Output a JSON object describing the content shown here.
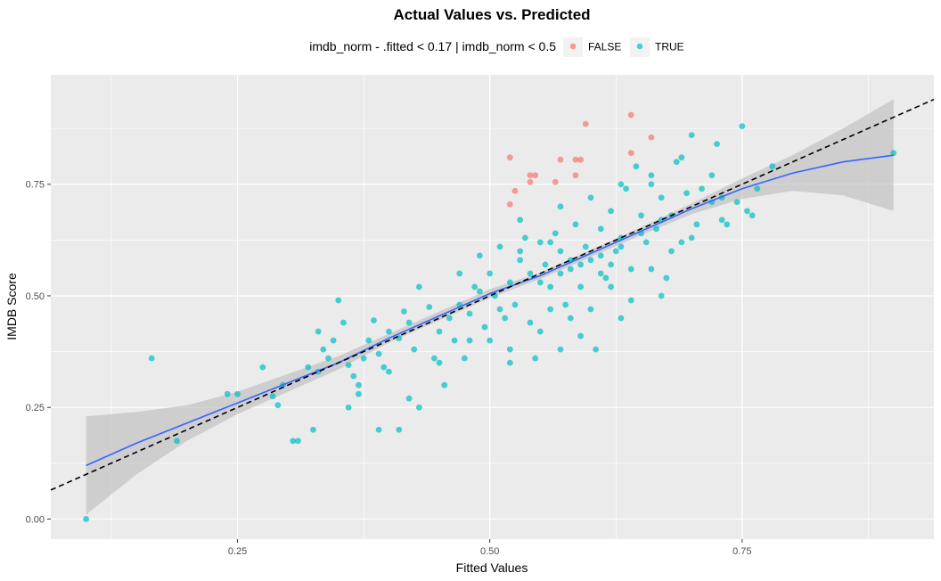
{
  "chart_data": {
    "type": "scatter",
    "title": "Actual Values vs. Predicted",
    "xlabel": "Fitted Values",
    "ylabel": "IMDB Score",
    "xlim": [
      0.065,
      0.94
    ],
    "ylim": [
      -0.045,
      0.995
    ],
    "x_ticks": [
      0.25,
      0.5,
      0.75
    ],
    "x_tick_labels": [
      "0.25",
      "0.50",
      "0.75"
    ],
    "y_ticks": [
      0.0,
      0.25,
      0.5,
      0.75
    ],
    "y_tick_labels": [
      "0.00",
      "0.25",
      "0.50",
      "0.75"
    ],
    "grid": true,
    "legend": {
      "title": "imdb_norm - .fitted < 0.17 | imdb_norm < 0.5",
      "placement": "top",
      "entries": [
        {
          "label": "FALSE",
          "color": "#F8766D"
        },
        {
          "label": "TRUE",
          "color": "#00BFC4"
        }
      ]
    },
    "colors": {
      "panel": "#EBEBEB",
      "grid": "#FFFFFF",
      "smooth_line": "#3366FF",
      "ribbon": "#BEBEBE",
      "reference_line": "#000000"
    },
    "reference_line": {
      "slope": 1,
      "intercept": 0,
      "style": "dashed"
    },
    "smooth": {
      "x": [
        0.1,
        0.15,
        0.2,
        0.25,
        0.3,
        0.35,
        0.4,
        0.45,
        0.5,
        0.55,
        0.6,
        0.65,
        0.7,
        0.75,
        0.8,
        0.85,
        0.9
      ],
      "y": [
        0.12,
        0.17,
        0.215,
        0.26,
        0.305,
        0.35,
        0.405,
        0.455,
        0.505,
        0.545,
        0.595,
        0.645,
        0.695,
        0.74,
        0.775,
        0.8,
        0.815
      ],
      "lower": [
        0.01,
        0.1,
        0.175,
        0.235,
        0.285,
        0.335,
        0.395,
        0.445,
        0.495,
        0.538,
        0.587,
        0.636,
        0.683,
        0.717,
        0.735,
        0.725,
        0.69
      ],
      "upper": [
        0.23,
        0.24,
        0.255,
        0.285,
        0.325,
        0.365,
        0.415,
        0.465,
        0.515,
        0.552,
        0.603,
        0.654,
        0.707,
        0.763,
        0.815,
        0.875,
        0.94
      ]
    },
    "series": [
      {
        "name": "FALSE",
        "points": [
          [
            0.52,
            0.81
          ],
          [
            0.525,
            0.735
          ],
          [
            0.52,
            0.705
          ],
          [
            0.54,
            0.77
          ],
          [
            0.545,
            0.77
          ],
          [
            0.54,
            0.755
          ],
          [
            0.565,
            0.755
          ],
          [
            0.57,
            0.805
          ],
          [
            0.585,
            0.77
          ],
          [
            0.59,
            0.805
          ],
          [
            0.595,
            0.885
          ],
          [
            0.64,
            0.905
          ],
          [
            0.64,
            0.82
          ],
          [
            0.66,
            0.855
          ],
          [
            0.585,
            0.805
          ]
        ]
      },
      {
        "name": "TRUE",
        "points": [
          [
            0.1,
            0.0
          ],
          [
            0.165,
            0.36
          ],
          [
            0.19,
            0.175
          ],
          [
            0.24,
            0.28
          ],
          [
            0.25,
            0.28
          ],
          [
            0.285,
            0.275
          ],
          [
            0.29,
            0.255
          ],
          [
            0.295,
            0.3
          ],
          [
            0.275,
            0.34
          ],
          [
            0.305,
            0.175
          ],
          [
            0.31,
            0.175
          ],
          [
            0.32,
            0.34
          ],
          [
            0.325,
            0.2
          ],
          [
            0.33,
            0.42
          ],
          [
            0.335,
            0.38
          ],
          [
            0.34,
            0.36
          ],
          [
            0.345,
            0.4
          ],
          [
            0.35,
            0.49
          ],
          [
            0.355,
            0.44
          ],
          [
            0.36,
            0.345
          ],
          [
            0.365,
            0.32
          ],
          [
            0.37,
            0.3
          ],
          [
            0.375,
            0.36
          ],
          [
            0.38,
            0.4
          ],
          [
            0.385,
            0.445
          ],
          [
            0.39,
            0.37
          ],
          [
            0.395,
            0.34
          ],
          [
            0.4,
            0.42
          ],
          [
            0.41,
            0.405
          ],
          [
            0.415,
            0.465
          ],
          [
            0.42,
            0.44
          ],
          [
            0.425,
            0.38
          ],
          [
            0.43,
            0.52
          ],
          [
            0.44,
            0.475
          ],
          [
            0.445,
            0.36
          ],
          [
            0.45,
            0.42
          ],
          [
            0.455,
            0.3
          ],
          [
            0.46,
            0.45
          ],
          [
            0.465,
            0.4
          ],
          [
            0.47,
            0.48
          ],
          [
            0.475,
            0.36
          ],
          [
            0.48,
            0.46
          ],
          [
            0.485,
            0.52
          ],
          [
            0.49,
            0.59
          ],
          [
            0.495,
            0.43
          ],
          [
            0.5,
            0.55
          ],
          [
            0.505,
            0.5
          ],
          [
            0.51,
            0.61
          ],
          [
            0.515,
            0.45
          ],
          [
            0.52,
            0.53
          ],
          [
            0.525,
            0.48
          ],
          [
            0.53,
            0.58
          ],
          [
            0.535,
            0.63
          ],
          [
            0.54,
            0.55
          ],
          [
            0.545,
            0.36
          ],
          [
            0.55,
            0.62
          ],
          [
            0.555,
            0.57
          ],
          [
            0.56,
            0.52
          ],
          [
            0.565,
            0.64
          ],
          [
            0.57,
            0.6
          ],
          [
            0.575,
            0.48
          ],
          [
            0.58,
            0.56
          ],
          [
            0.585,
            0.66
          ],
          [
            0.59,
            0.52
          ],
          [
            0.595,
            0.61
          ],
          [
            0.6,
            0.58
          ],
          [
            0.605,
            0.38
          ],
          [
            0.61,
            0.65
          ],
          [
            0.615,
            0.54
          ],
          [
            0.62,
            0.69
          ],
          [
            0.625,
            0.6
          ],
          [
            0.63,
            0.63
          ],
          [
            0.635,
            0.74
          ],
          [
            0.64,
            0.56
          ],
          [
            0.645,
            0.79
          ],
          [
            0.65,
            0.68
          ],
          [
            0.655,
            0.62
          ],
          [
            0.66,
            0.75
          ],
          [
            0.665,
            0.65
          ],
          [
            0.67,
            0.72
          ],
          [
            0.675,
            0.54
          ],
          [
            0.68,
            0.68
          ],
          [
            0.685,
            0.8
          ],
          [
            0.69,
            0.62
          ],
          [
            0.695,
            0.73
          ],
          [
            0.7,
            0.86
          ],
          [
            0.705,
            0.66
          ],
          [
            0.71,
            0.74
          ],
          [
            0.72,
            0.71
          ],
          [
            0.725,
            0.84
          ],
          [
            0.73,
            0.72
          ],
          [
            0.735,
            0.66
          ],
          [
            0.745,
            0.71
          ],
          [
            0.75,
            0.88
          ],
          [
            0.755,
            0.69
          ],
          [
            0.76,
            0.68
          ],
          [
            0.765,
            0.74
          ],
          [
            0.78,
            0.79
          ],
          [
            0.9,
            0.82
          ],
          [
            0.37,
            0.28
          ],
          [
            0.4,
            0.33
          ],
          [
            0.42,
            0.27
          ],
          [
            0.43,
            0.25
          ],
          [
            0.45,
            0.35
          ],
          [
            0.48,
            0.4
          ],
          [
            0.5,
            0.4
          ],
          [
            0.52,
            0.38
          ],
          [
            0.55,
            0.42
          ],
          [
            0.56,
            0.47
          ],
          [
            0.58,
            0.45
          ],
          [
            0.6,
            0.47
          ],
          [
            0.62,
            0.52
          ],
          [
            0.64,
            0.49
          ],
          [
            0.66,
            0.56
          ],
          [
            0.68,
            0.6
          ],
          [
            0.7,
            0.63
          ],
          [
            0.73,
            0.67
          ],
          [
            0.53,
            0.67
          ],
          [
            0.57,
            0.7
          ],
          [
            0.6,
            0.72
          ],
          [
            0.63,
            0.75
          ],
          [
            0.66,
            0.77
          ],
          [
            0.69,
            0.81
          ],
          [
            0.72,
            0.77
          ],
          [
            0.54,
            0.44
          ],
          [
            0.57,
            0.38
          ],
          [
            0.59,
            0.41
          ],
          [
            0.63,
            0.45
          ],
          [
            0.67,
            0.5
          ],
          [
            0.36,
            0.25
          ],
          [
            0.33,
            0.33
          ],
          [
            0.41,
            0.2
          ],
          [
            0.39,
            0.2
          ],
          [
            0.52,
            0.35
          ],
          [
            0.47,
            0.55
          ],
          [
            0.49,
            0.51
          ],
          [
            0.51,
            0.47
          ],
          [
            0.53,
            0.6
          ],
          [
            0.56,
            0.62
          ],
          [
            0.58,
            0.58
          ],
          [
            0.61,
            0.59
          ],
          [
            0.63,
            0.61
          ],
          [
            0.65,
            0.64
          ],
          [
            0.67,
            0.67
          ],
          [
            0.55,
            0.53
          ],
          [
            0.57,
            0.55
          ],
          [
            0.59,
            0.57
          ],
          [
            0.61,
            0.55
          ],
          [
            0.62,
            0.57
          ]
        ]
      }
    ]
  }
}
